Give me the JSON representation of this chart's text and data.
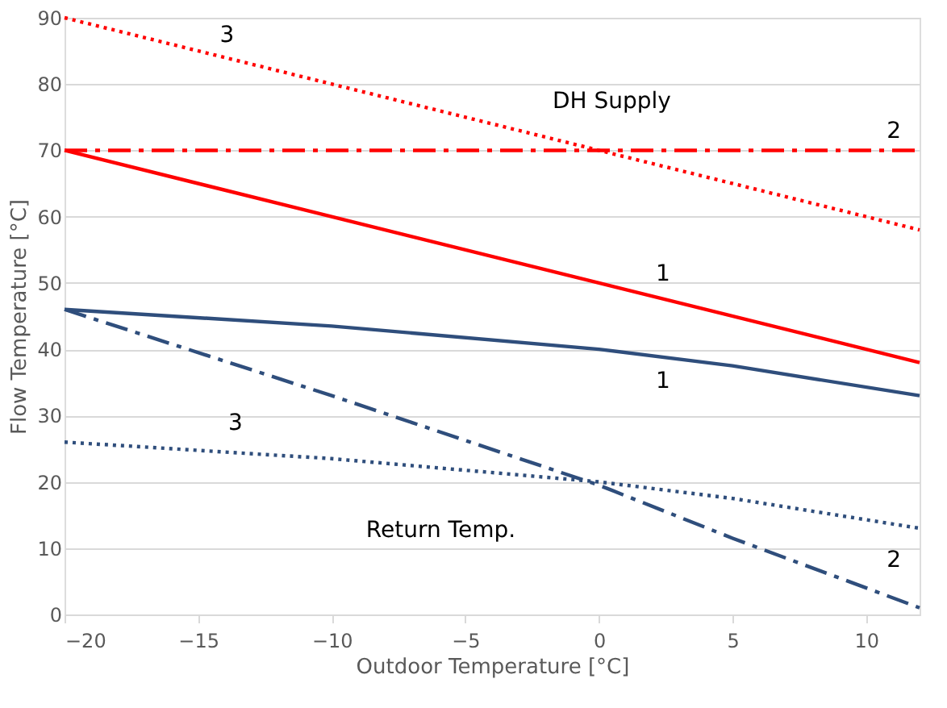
{
  "chart_data": {
    "type": "line",
    "xlabel": "Outdoor Temperature [°C]",
    "ylabel": "Flow Temperature [°C]",
    "xlim": [
      -20,
      12
    ],
    "xticks": [
      -20,
      -15,
      -10,
      -5,
      0,
      5,
      10
    ],
    "ylim": [
      0,
      90
    ],
    "yticks": [
      0,
      10,
      20,
      30,
      40,
      50,
      60,
      70,
      80,
      90
    ],
    "grid": "y",
    "marker": "none",
    "series": [
      {
        "color": "#ff0000",
        "line_style": "dotted",
        "x": [
          -20,
          12
        ],
        "values": [
          90,
          58
        ]
      },
      {
        "color": "#ff0000",
        "line_style": "dashed",
        "x": [
          -20,
          12
        ],
        "values": [
          70,
          70
        ]
      },
      {
        "color": "#ff0000",
        "line_style": "solid",
        "x": [
          -20,
          0,
          12
        ],
        "values": [
          70,
          50,
          38
        ]
      },
      {
        "color": "#2f4e7c",
        "line_style": "solid",
        "x": [
          -20,
          -10,
          0,
          5,
          12
        ],
        "values": [
          46,
          43.5,
          40,
          37.5,
          33
        ]
      },
      {
        "color": "#2f4e7c",
        "line_style": "dashed",
        "x": [
          -20,
          -10,
          0,
          5,
          12
        ],
        "values": [
          46,
          33,
          19.5,
          11.5,
          1
        ]
      },
      {
        "color": "#2f4e7c",
        "line_style": "dotted",
        "x": [
          -20,
          -10,
          0,
          5,
          12
        ],
        "values": [
          26,
          23.5,
          20,
          17.5,
          13
        ]
      }
    ],
    "annotations": [
      "3",
      "DH Supply",
      "2",
      "1",
      "1",
      "3",
      "Return Temp.",
      "2"
    ]
  }
}
